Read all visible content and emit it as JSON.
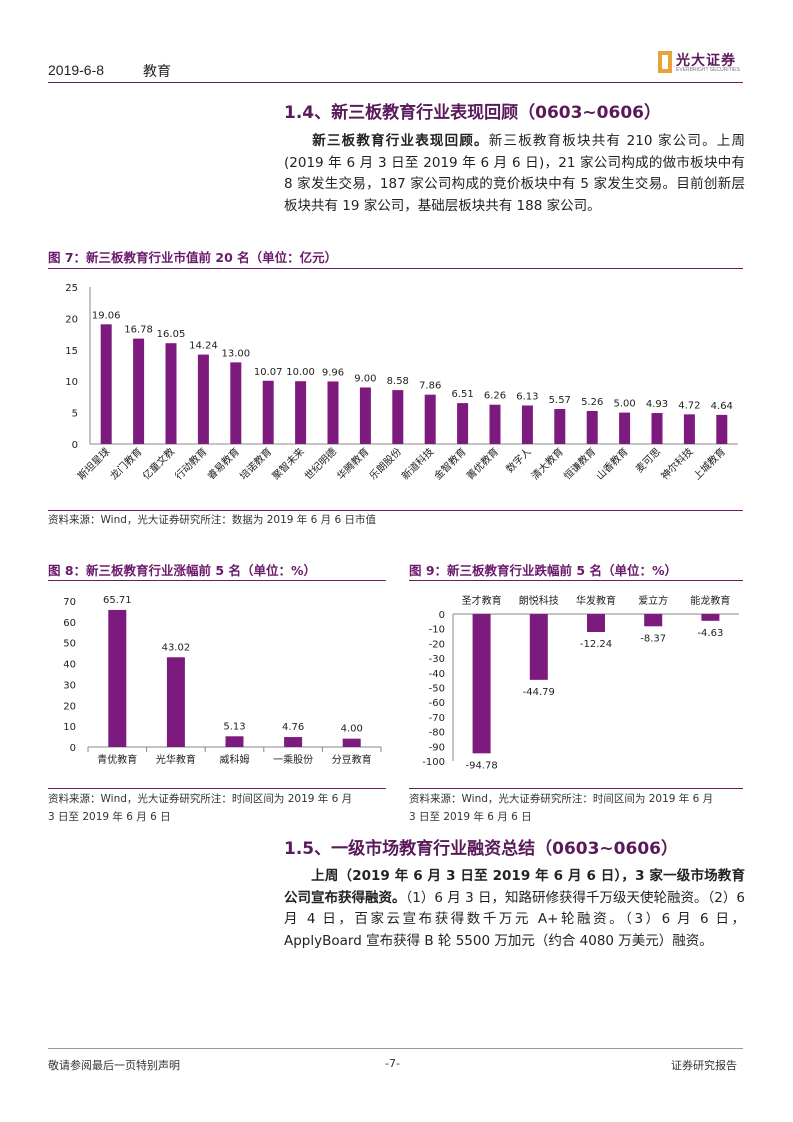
{
  "header": {
    "date": "2019-6-8",
    "section": "教育",
    "logo_cn": "光大证券",
    "logo_en": "EVERBRIGHT SECURITIES"
  },
  "section_1_4": {
    "heading": "1.4、新三板教育行业表现回顾（0603~0606）",
    "lead": "新三板教育行业表现回顾。",
    "body": "新三板教育板块共有 210 家公司。上周(2019 年 6 月 3 日至 2019 年 6 月 6 日)，21 家公司构成的做市板块中有 8 家发生交易，187 家公司构成的竞价板块中有 5 家发生交易。目前创新层板块共有 19 家公司，基础层板块共有 188 家公司。"
  },
  "fig7": {
    "title": "图 7：新三板教育行业市值前 20 名（单位：亿元）",
    "source": "资料来源：Wind，光大证券研究所注：数据为 2019 年 6 月 6 日市值"
  },
  "fig8": {
    "title": "图 8：新三板教育行业涨幅前 5 名（单位：%）",
    "source_line1": "资料来源：Wind，光大证券研究所注：时间区间为 2019 年 6 月",
    "source_line2": "3 日至 2019 年 6 月 6 日"
  },
  "fig9": {
    "title": "图 9：新三板教育行业跌幅前 5 名（单位：%）",
    "source_line1": "资料来源：Wind，光大证券研究所注：时间区间为 2019 年 6 月",
    "source_line2": "3 日至 2019 年 6 月 6 日"
  },
  "section_1_5": {
    "heading": "1.5、一级市场教育行业融资总结（0603~0606）",
    "lead": "上周（2019 年 6 月 3 日至 2019 年 6 月 6 日），3 家一级市场教育公司宣布获得融资。",
    "body": "（1）6 月 3 日，知路研修获得千万级天使轮融资。（2）6 月 4 日，百家云宣布获得数千万元 A+轮融资。（3）6 月 6 日，ApplyBoard 宣布获得 B 轮 5500 万加元（约合 4080 万美元）融资。"
  },
  "footer": {
    "left": "敬请参阅最后一页特别声明",
    "page": "-7-",
    "right": "证券研究报告"
  },
  "colors": {
    "bar": "#7d1a7d",
    "accent": "#5a1a5a"
  },
  "chart_data": [
    {
      "type": "bar",
      "categories": [
        "斯坦星球",
        "龙门教育",
        "亿童文教",
        "行动教育",
        "睿易教育",
        "培诺教育",
        "聚智未来",
        "世纪明德",
        "华腾教育",
        "乐朗股份",
        "新道科技",
        "金智教育",
        "菁优教育",
        "数字人",
        "清大教育",
        "恒谦教育",
        "山香教育",
        "麦可思",
        "神尔科技",
        "上城教育"
      ],
      "values": [
        19.06,
        16.78,
        16.05,
        14.24,
        13.0,
        10.07,
        10.0,
        9.96,
        9.0,
        8.58,
        7.86,
        6.51,
        6.26,
        6.13,
        5.57,
        5.26,
        5.0,
        4.93,
        4.72,
        4.64
      ],
      "labels": [
        "19.06",
        "16.78",
        "16.05",
        "14.24",
        "13.00",
        "10.07",
        "10.00",
        "9.96",
        "9.00",
        "8.58",
        "7.86",
        "6.51",
        "6.26",
        "6.13",
        "5.57",
        "5.26",
        "5.00",
        "4.93",
        "4.72",
        "4.64"
      ],
      "ylim": [
        0,
        25
      ],
      "yticks": [
        "0",
        "5",
        "10",
        "15",
        "20",
        "25"
      ]
    },
    {
      "type": "bar",
      "categories": [
        "青优教育",
        "光华教育",
        "威科姆",
        "一乘股份",
        "分豆教育"
      ],
      "values": [
        65.71,
        43.02,
        5.13,
        4.76,
        4.0
      ],
      "labels": [
        "65.71",
        "43.02",
        "5.13",
        "4.76",
        "4.00"
      ],
      "ylim": [
        0,
        70
      ],
      "yticks": [
        "0",
        "10",
        "20",
        "30",
        "40",
        "50",
        "60",
        "70"
      ]
    },
    {
      "type": "bar",
      "categories": [
        "圣才教育",
        "朗悦科技",
        "华发教育",
        "爱立方",
        "能龙教育"
      ],
      "values": [
        -94.78,
        -44.79,
        -12.24,
        -8.37,
        -4.63
      ],
      "labels": [
        "-94.78",
        "-44.79",
        "-12.24",
        "-8.37",
        "-4.63"
      ],
      "ylim": [
        -100,
        0
      ],
      "yticks": [
        "0",
        "-10",
        "-20",
        "-30",
        "-40",
        "-50",
        "-60",
        "-70",
        "-80",
        "-90",
        "-100"
      ]
    }
  ]
}
